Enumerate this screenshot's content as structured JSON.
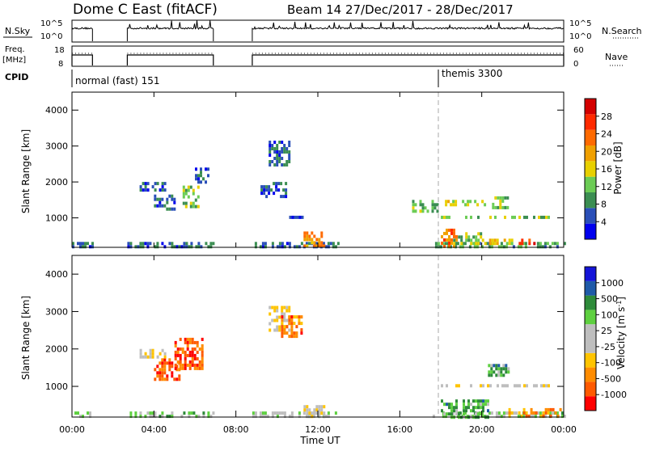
{
  "header": {
    "title": "Dome C East (fitACF)",
    "beam_info": "Beam 14  27/Dec/2017 - 28/Dec/2017"
  },
  "top_panels": {
    "nsky": {
      "label": "N.Sky",
      "ticks": [
        "10^5",
        "10^0"
      ]
    },
    "nsearch": {
      "label": "N.Search",
      "ticks": [
        "10^5",
        "10^0"
      ]
    },
    "freq": {
      "label_line1": "Freq.",
      "label_line2": "[MHz]",
      "ticks": [
        "18",
        "8"
      ]
    },
    "nave": {
      "label": "Nave",
      "ticks": [
        "60",
        "0"
      ]
    },
    "cpid": {
      "label": "CPID",
      "segments": [
        {
          "start_hour": 0,
          "label": "normal (fast) 151"
        },
        {
          "start_hour": 18.0,
          "label": "themis 3300"
        }
      ]
    }
  },
  "colors": {
    "power_scale": [
      "#0000ee",
      "#2a4fb8",
      "#3b8e52",
      "#6ccc55",
      "#e8d000",
      "#f0a000",
      "#ff6a00",
      "#ff2a00",
      "#d40000"
    ],
    "velocity_scale": [
      "#ff0000",
      "#ff5a00",
      "#ff8c00",
      "#ffc400",
      "#bebebe",
      "#bebebe",
      "#5ed040",
      "#2e8b3a",
      "#1f5aa8",
      "#1414d8"
    ]
  },
  "chart_data": [
    {
      "type": "heatmap",
      "name": "power",
      "ylabel": "Slant Range [km]",
      "ylim": [
        180,
        4500
      ],
      "yticks": [
        1000,
        2000,
        3000,
        4000
      ],
      "colorbar": {
        "label": "Power [dB]",
        "range": [
          0,
          32
        ],
        "ticks": [
          "4",
          "8",
          "12",
          "16",
          "20",
          "24",
          "28"
        ]
      },
      "regions": [
        {
          "t0": 0.0,
          "t1": 1.0,
          "r0": 190,
          "r1": 330,
          "level": 0.2
        },
        {
          "t0": 2.7,
          "t1": 6.9,
          "r0": 190,
          "r1": 330,
          "level": 0.2
        },
        {
          "t0": 3.3,
          "t1": 4.6,
          "r0": 1780,
          "r1": 2000,
          "level": 0.15
        },
        {
          "t0": 4.0,
          "t1": 5.0,
          "r0": 1280,
          "r1": 1650,
          "level": 0.2
        },
        {
          "t0": 5.4,
          "t1": 6.2,
          "r0": 1300,
          "r1": 1900,
          "level": 0.4
        },
        {
          "t0": 6.0,
          "t1": 6.6,
          "r0": 1950,
          "r1": 2400,
          "level": 0.2
        },
        {
          "t0": 9.6,
          "t1": 10.6,
          "r0": 2500,
          "r1": 3150,
          "level": 0.2
        },
        {
          "t0": 9.2,
          "t1": 10.4,
          "r0": 1550,
          "r1": 2000,
          "level": 0.15
        },
        {
          "t0": 8.8,
          "t1": 13.0,
          "r0": 190,
          "r1": 330,
          "level": 0.2
        },
        {
          "t0": 11.3,
          "t1": 12.3,
          "r0": 190,
          "r1": 620,
          "level": 0.65
        },
        {
          "t0": 10.6,
          "t1": 11.3,
          "r0": 990,
          "r1": 1060,
          "level": 0.1
        },
        {
          "t0": 16.6,
          "t1": 17.8,
          "r0": 1200,
          "r1": 1500,
          "level": 0.35
        },
        {
          "t0": 17.6,
          "t1": 24.0,
          "r0": 190,
          "r1": 330,
          "level": 0.3
        },
        {
          "t0": 18.0,
          "t1": 18.8,
          "r0": 190,
          "r1": 700,
          "level": 0.7
        },
        {
          "t0": 18.6,
          "t1": 20.0,
          "r0": 250,
          "r1": 600,
          "level": 0.4
        },
        {
          "t0": 18.2,
          "t1": 20.2,
          "r0": 1400,
          "r1": 1500,
          "level": 0.45
        },
        {
          "t0": 18.0,
          "t1": 23.3,
          "r0": 980,
          "r1": 1060,
          "level": 0.35
        },
        {
          "t0": 20.5,
          "t1": 21.3,
          "r0": 1320,
          "r1": 1600,
          "level": 0.4
        },
        {
          "t0": 21.8,
          "t1": 22.8,
          "r0": 250,
          "r1": 420,
          "level": 0.8
        },
        {
          "t0": 20.0,
          "t1": 21.5,
          "r0": 250,
          "r1": 420,
          "level": 0.5
        }
      ]
    },
    {
      "type": "heatmap",
      "name": "velocity",
      "ylabel": "Slant Range [km]",
      "xlabel": "Time UT",
      "ylim": [
        180,
        4500
      ],
      "yticks": [
        1000,
        2000,
        3000,
        4000
      ],
      "xticks": [
        "00:00",
        "04:00",
        "08:00",
        "12:00",
        "16:00",
        "20:00",
        "00:00"
      ],
      "colorbar": {
        "label": "Velocity [m s^-1]",
        "ticks": [
          "-1000",
          "-500",
          "-100",
          "-25",
          "25",
          "100",
          "500",
          "1000"
        ]
      },
      "regions": [
        {
          "t0": 0.0,
          "t1": 1.0,
          "r0": 190,
          "r1": 330,
          "level": 0.55
        },
        {
          "t0": 2.7,
          "t1": 6.9,
          "r0": 190,
          "r1": 330,
          "level": 0.62
        },
        {
          "t0": 4.0,
          "t1": 5.2,
          "r0": 1150,
          "r1": 1750,
          "level": 0.15
        },
        {
          "t0": 5.0,
          "t1": 6.4,
          "r0": 1450,
          "r1": 2300,
          "level": 0.15
        },
        {
          "t0": 3.3,
          "t1": 4.6,
          "r0": 1800,
          "r1": 2000,
          "level": 0.45
        },
        {
          "t0": 9.6,
          "t1": 10.6,
          "r0": 2500,
          "r1": 3150,
          "level": 0.45
        },
        {
          "t0": 10.2,
          "t1": 11.2,
          "r0": 2300,
          "r1": 2900,
          "level": 0.2
        },
        {
          "t0": 8.8,
          "t1": 13.0,
          "r0": 190,
          "r1": 330,
          "level": 0.55
        },
        {
          "t0": 11.3,
          "t1": 12.3,
          "r0": 190,
          "r1": 500,
          "level": 0.45
        },
        {
          "t0": 17.6,
          "t1": 24.0,
          "r0": 190,
          "r1": 330,
          "level": 0.6
        },
        {
          "t0": 18.0,
          "t1": 20.3,
          "r0": 200,
          "r1": 650,
          "level": 0.68
        },
        {
          "t0": 20.3,
          "t1": 21.3,
          "r0": 1300,
          "r1": 1600,
          "level": 0.7
        },
        {
          "t0": 18.0,
          "t1": 23.3,
          "r0": 980,
          "r1": 1060,
          "level": 0.45
        },
        {
          "t0": 21.3,
          "t1": 23.8,
          "r0": 200,
          "r1": 420,
          "level": 0.25
        }
      ]
    }
  ]
}
